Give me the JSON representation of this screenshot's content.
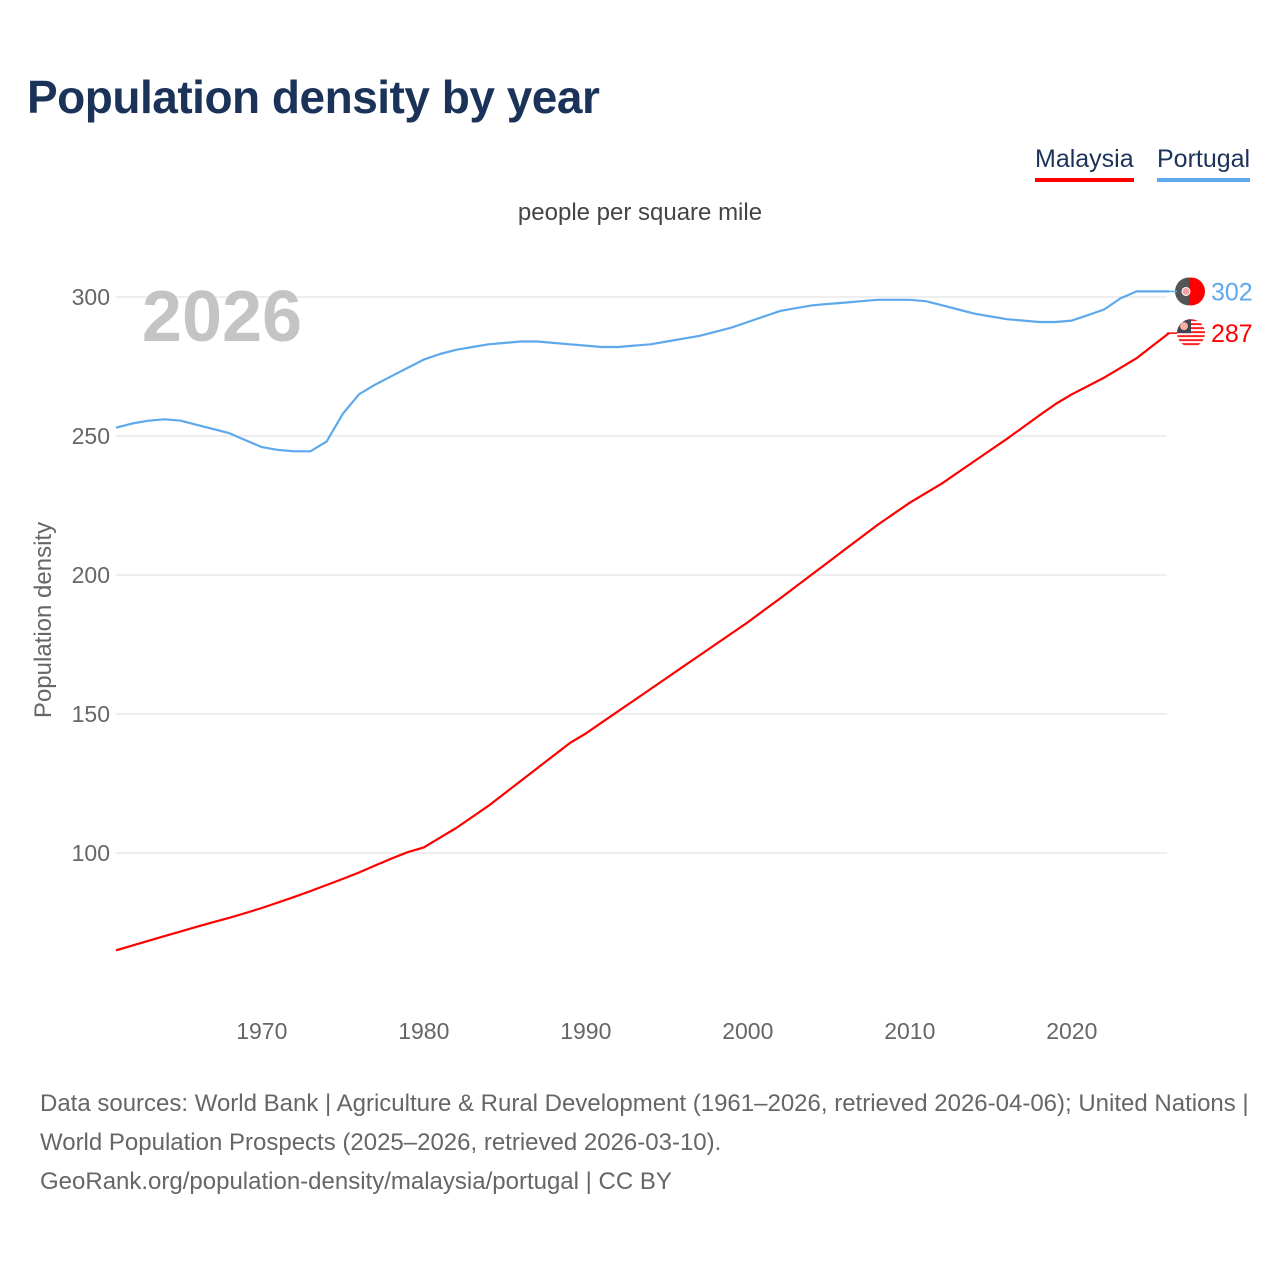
{
  "chart_data": {
    "type": "line",
    "title": "Population density by year",
    "subtitle": "people per square mile",
    "ylabel": "Population density",
    "xlabel": "",
    "year_watermark": "2026",
    "xlim": [
      1961,
      2026
    ],
    "ylim": [
      43,
      320
    ],
    "x_ticks": [
      "1970",
      "1980",
      "1990",
      "2000",
      "2010",
      "2020"
    ],
    "y_ticks": [
      "100",
      "150",
      "200",
      "250",
      "300"
    ],
    "grid": true,
    "legend_placement": "top-right",
    "x": [
      1961,
      1962,
      1963,
      1964,
      1965,
      1966,
      1967,
      1968,
      1969,
      1970,
      1971,
      1972,
      1973,
      1974,
      1975,
      1976,
      1977,
      1978,
      1979,
      1980,
      1981,
      1982,
      1983,
      1984,
      1985,
      1986,
      1987,
      1988,
      1989,
      1990,
      1991,
      1992,
      1993,
      1994,
      1995,
      1996,
      1997,
      1998,
      1999,
      2000,
      2001,
      2002,
      2003,
      2004,
      2005,
      2006,
      2007,
      2008,
      2009,
      2010,
      2011,
      2012,
      2013,
      2014,
      2015,
      2016,
      2017,
      2018,
      2019,
      2020,
      2021,
      2022,
      2023,
      2024,
      2025,
      2026
    ],
    "series": [
      {
        "name": "Malaysia",
        "color": "#ff0000",
        "end_label": "287",
        "values": [
          65,
          66.7,
          68.4,
          70.1,
          71.8,
          73.5,
          75.1,
          76.7,
          78.4,
          80.2,
          82.2,
          84.2,
          86.3,
          88.5,
          90.7,
          93,
          95.5,
          98,
          100.3,
          102,
          105.5,
          109,
          113,
          117,
          121.5,
          126,
          130.5,
          135,
          139.5,
          143,
          147,
          151,
          155,
          159,
          163,
          167,
          171,
          175,
          179,
          183,
          187.3,
          191.6,
          196,
          200.4,
          204.8,
          209.2,
          213.6,
          218,
          222,
          226,
          229.5,
          233,
          237,
          241,
          245,
          249,
          253.2,
          257.4,
          261.5,
          265,
          268,
          271,
          274.5,
          278,
          282.5,
          287
        ]
      },
      {
        "name": "Portugal",
        "color": "#5ea8ec",
        "end_label": "302",
        "values": [
          253,
          254.5,
          255.5,
          256,
          255.5,
          254,
          252.5,
          251,
          248.5,
          246,
          245,
          244.5,
          244.5,
          248,
          258,
          265,
          268.5,
          271.5,
          274.5,
          277.5,
          279.5,
          281,
          282,
          283,
          283.5,
          284,
          284,
          283.5,
          283,
          282.5,
          282,
          282,
          282.5,
          283,
          284,
          285,
          286,
          287.5,
          289,
          291,
          293,
          295,
          296,
          297,
          297.5,
          298,
          298.5,
          299,
          299,
          299,
          298.5,
          297,
          295.5,
          294,
          293,
          292,
          291.5,
          291,
          291,
          291.5,
          293.5,
          295.5,
          299.5,
          302,
          302,
          302
        ]
      }
    ]
  },
  "footer": {
    "sources": "Data sources: World Bank | Agriculture & Rural Development (1961–2026, retrieved 2026-04-06); United Nations | World Population Prospects (2025–2026, retrieved 2026-03-10).",
    "link": "GeoRank.org/population-density/malaysia/portugal | CC BY"
  }
}
